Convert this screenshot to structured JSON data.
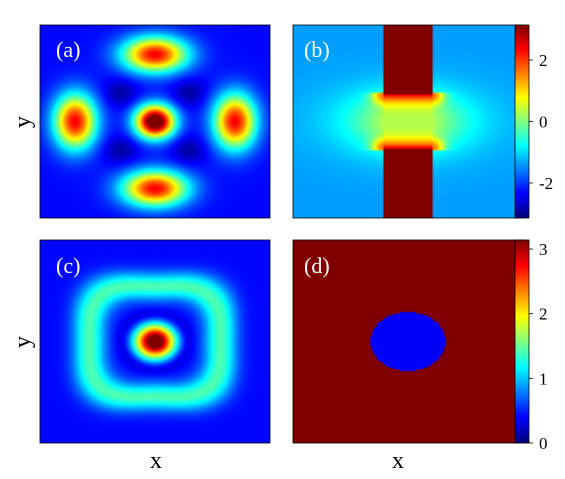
{
  "chart_data": [
    {
      "type": "heatmap",
      "panel_label": "(a)",
      "xlabel": "",
      "ylabel": "y",
      "colormap": "jet",
      "colorbar": false,
      "field": "density",
      "grid": false,
      "features": {
        "central_peak": {
          "x": 0,
          "y": 0,
          "sigma": 0.12,
          "amp": 1.0
        },
        "lobes": [
          {
            "x": 0,
            "y": 0.7,
            "sx": 0.2,
            "sy": 0.13,
            "amp": 0.75
          },
          {
            "x": 0,
            "y": -0.7,
            "sx": 0.2,
            "sy": 0.13,
            "amp": 0.75
          },
          {
            "x": 0.7,
            "y": 0,
            "sx": 0.13,
            "sy": 0.2,
            "amp": 0.75
          },
          {
            "x": -0.7,
            "y": 0,
            "sx": 0.13,
            "sy": 0.2,
            "amp": 0.75
          }
        ]
      }
    },
    {
      "type": "heatmap",
      "panel_label": "(b)",
      "xlabel": "",
      "ylabel": "",
      "colormap": "jet",
      "field": "phase",
      "grid": false,
      "colorbar": {
        "ticks": [
          2,
          0,
          -2
        ],
        "tick_labels": [
          "2",
          "0",
          "-2"
        ],
        "range": [
          -3.14,
          3.14
        ]
      }
    },
    {
      "type": "heatmap",
      "panel_label": "(c)",
      "xlabel": "x",
      "ylabel": "y",
      "colormap": "jet",
      "colorbar": false,
      "field": "density",
      "grid": false,
      "features": {
        "central_peak": {
          "x": 0,
          "y": 0,
          "sigma": 0.12,
          "amp": 1.0
        },
        "ring": {
          "radius": 0.62,
          "width": 0.22,
          "amp": 0.32
        }
      }
    },
    {
      "type": "heatmap",
      "panel_label": "(d)",
      "xlabel": "x",
      "ylabel": "",
      "colormap": "jet",
      "field": "phase",
      "grid": false,
      "colorbar": {
        "ticks": [
          3,
          2,
          1,
          0
        ],
        "tick_labels": [
          "3",
          "2",
          "1",
          "0"
        ],
        "range": [
          0,
          3.14
        ]
      },
      "features": {
        "inner_disk": {
          "radius": 0.33,
          "value": 0.0
        },
        "outer_value": 3.14
      }
    }
  ]
}
